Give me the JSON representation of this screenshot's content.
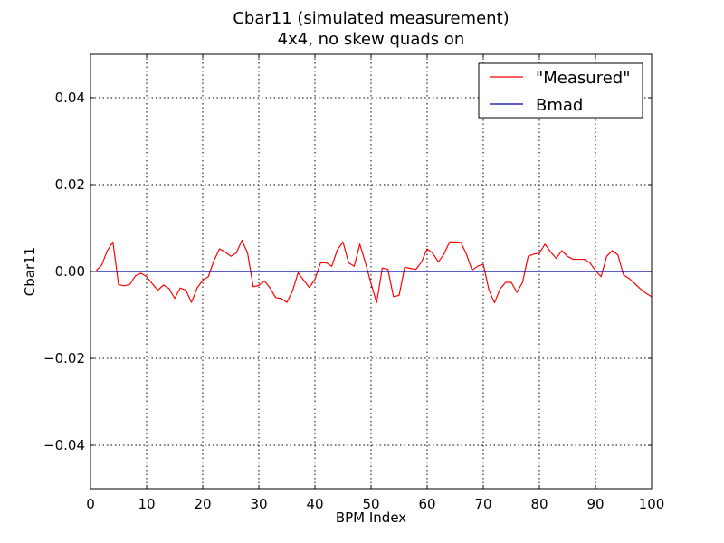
{
  "chart_data": {
    "type": "line",
    "title": "Cbar11 (simulated measurement)",
    "subtitle": "4x4, no skew quads on",
    "xlabel": "BPM Index",
    "ylabel": "Cbar11",
    "xlim": [
      0,
      100
    ],
    "ylim": [
      -0.05,
      0.05
    ],
    "x_ticks": [
      0,
      10,
      20,
      30,
      40,
      50,
      60,
      70,
      80,
      90,
      100
    ],
    "y_ticks": [
      -0.04,
      -0.02,
      0.0,
      0.02,
      0.04
    ],
    "x_tick_labels": [
      "0",
      "10",
      "20",
      "30",
      "40",
      "50",
      "60",
      "70",
      "80",
      "90",
      "100"
    ],
    "y_tick_labels": [
      "−0.04",
      "−0.02",
      "0.00",
      "0.02",
      "0.04"
    ],
    "grid": true,
    "legend_position": "top-right",
    "series": [
      {
        "name": "\"Measured\"",
        "color": "#ff0000",
        "x": [
          1,
          2,
          3,
          4,
          5,
          6,
          7,
          8,
          9,
          10,
          11,
          12,
          13,
          14,
          15,
          16,
          17,
          18,
          19,
          20,
          21,
          22,
          23,
          24,
          25,
          26,
          27,
          28,
          29,
          30,
          31,
          32,
          33,
          34,
          35,
          36,
          37,
          38,
          39,
          40,
          41,
          42,
          43,
          44,
          45,
          46,
          47,
          48,
          49,
          50,
          51,
          52,
          53,
          54,
          55,
          56,
          57,
          58,
          59,
          60,
          61,
          62,
          63,
          64,
          65,
          66,
          67,
          68,
          69,
          70,
          71,
          72,
          73,
          74,
          75,
          76,
          77,
          78,
          79,
          80,
          81,
          82,
          83,
          84,
          85,
          86,
          87,
          88,
          89,
          90,
          91,
          92,
          93,
          94,
          95,
          96,
          97,
          98,
          99,
          100
        ],
        "y": [
          0.0002,
          0.0015,
          0.0048,
          0.0068,
          -0.003,
          -0.0033,
          -0.003,
          -0.001,
          -0.0004,
          -0.0012,
          -0.0028,
          -0.0043,
          -0.0031,
          -0.0039,
          -0.0062,
          -0.0038,
          -0.0043,
          -0.0071,
          -0.0038,
          -0.002,
          -0.0012,
          0.0025,
          0.0052,
          0.0045,
          0.0035,
          0.0043,
          0.0072,
          0.0042,
          -0.0035,
          -0.0032,
          -0.0022,
          -0.0038,
          -0.006,
          -0.0062,
          -0.0071,
          -0.0045,
          -0.0003,
          -0.002,
          -0.0037,
          -0.0018,
          0.002,
          0.002,
          0.0012,
          0.005,
          0.0068,
          0.002,
          0.0012,
          0.0063,
          0.002,
          -0.0028,
          -0.0072,
          0.0008,
          0.0005,
          -0.0058,
          -0.0055,
          0.001,
          0.0007,
          0.0005,
          0.0022,
          0.0052,
          0.0042,
          0.0022,
          0.004,
          0.0068,
          0.0068,
          0.0067,
          0.004,
          0.0003,
          0.0012,
          0.0017,
          -0.0042,
          -0.0072,
          -0.004,
          -0.0025,
          -0.0025,
          -0.0048,
          -0.0025,
          0.0035,
          0.004,
          0.0042,
          0.0063,
          0.0045,
          0.003,
          0.0048,
          0.0035,
          0.0028,
          0.0028,
          0.0028,
          0.002,
          0.0002,
          -0.0012,
          0.0035,
          0.0048,
          0.0038,
          -0.0008,
          -0.0016,
          -0.0028,
          -0.004,
          -0.005,
          -0.0058
        ]
      },
      {
        "name": "Bmad",
        "color": "#0000aa",
        "x": [
          1,
          100
        ],
        "y": [
          0.0,
          0.0
        ]
      }
    ]
  }
}
